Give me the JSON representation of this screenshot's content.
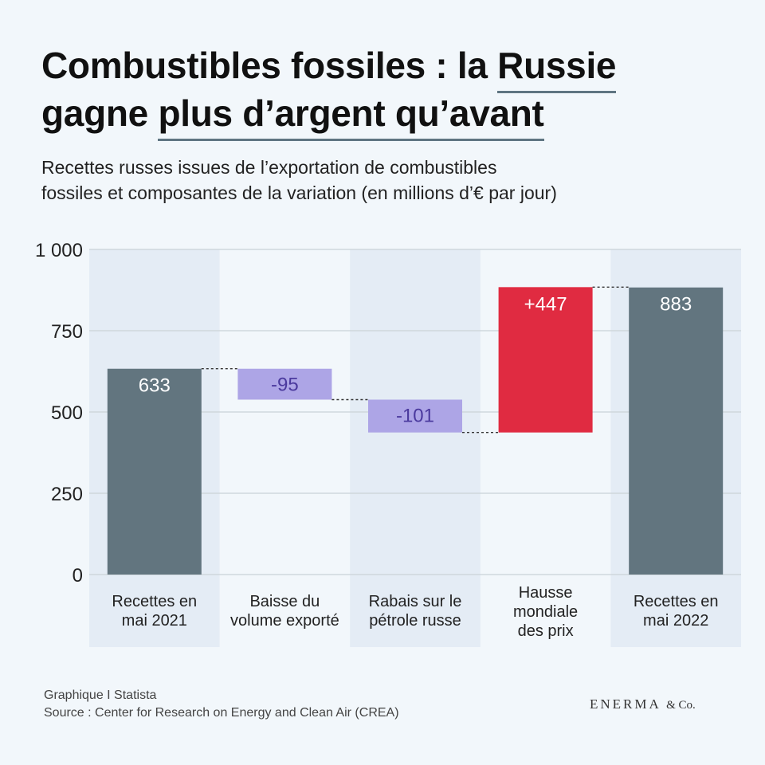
{
  "title": {
    "line1_pre": "Combustibles fossiles : la ",
    "line1_hl": "Russie",
    "line2_pre": "gagne ",
    "line2_hl": "plus d’argent qu’avant"
  },
  "subtitle": {
    "line1": "Recettes russes issues de l’exportation de combustibles",
    "line2": "fossiles et composantes de la variation (en millions d’€ par jour)"
  },
  "colors": {
    "total": "#62757f",
    "decrease": "#ada5e6",
    "increase": "#e02b41",
    "decrease_text": "#4b3a9e",
    "grid": "#c9d1d8",
    "band": "#e4ecf5"
  },
  "chart_data": {
    "type": "waterfall",
    "ylim": [
      0,
      1000
    ],
    "yticks": [
      0,
      250,
      500,
      750,
      1000
    ],
    "ytick_labels": [
      "0",
      "250",
      "500",
      "750",
      "1 000"
    ],
    "grid": true,
    "bars": [
      {
        "category": [
          "Recettes en",
          "mai 2021"
        ],
        "kind": "total",
        "value": 633,
        "label": "633"
      },
      {
        "category": [
          "Baisse du",
          "volume exporté"
        ],
        "kind": "decrease",
        "value": -95,
        "label": "-95"
      },
      {
        "category": [
          "Rabais sur le",
          "pétrole russe"
        ],
        "kind": "decrease",
        "value": -101,
        "label": "-101"
      },
      {
        "category": [
          "Hausse",
          "mondiale",
          "des prix"
        ],
        "kind": "increase",
        "value": 447,
        "label": "+447"
      },
      {
        "category": [
          "Recettes en",
          "mai 2022"
        ],
        "kind": "total",
        "value": 883,
        "label": "883"
      }
    ]
  },
  "footer": {
    "line1": "Graphique I Statista",
    "line2": "Source : Center for Research on Energy and Clean Air (CREA)"
  },
  "brand": {
    "main": "ENERMA",
    "suffix": "& Co."
  }
}
